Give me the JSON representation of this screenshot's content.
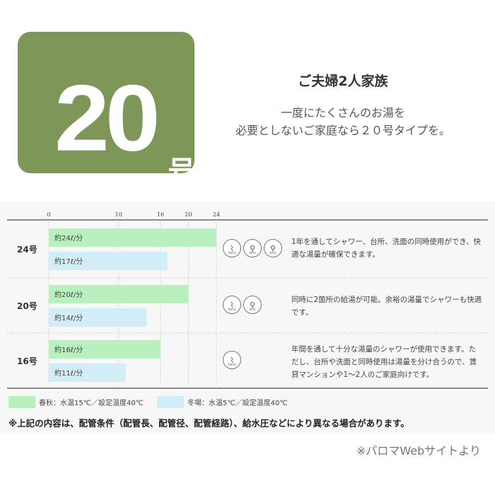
{
  "logo": {
    "number": "20",
    "suffix": "号"
  },
  "header": {
    "title": "ご夫婦2人家族",
    "subtitle_lines": [
      "一度にたくさんのお湯を",
      "必要としないご家庭なら２０号タイプを。"
    ]
  },
  "chart_data": {
    "type": "bar",
    "orientation": "horizontal",
    "categories": [
      "24号",
      "20号",
      "16号"
    ],
    "ticks": [
      0,
      10,
      16,
      20,
      24
    ],
    "xlim": [
      0,
      24
    ],
    "series": [
      {
        "name": "春秋：水温15℃／設定温度40℃",
        "color": "#b8f0c0",
        "values": [
          24,
          20,
          16
        ],
        "labels": [
          "約24ℓ/分",
          "約20ℓ/分",
          "約16ℓ/分"
        ]
      },
      {
        "name": "冬場：水温5℃／設定温度40℃",
        "color": "#d3edf8",
        "values": [
          17,
          14,
          11
        ],
        "labels": [
          "約17ℓ/分",
          "約14ℓ/分",
          "約11ℓ/分"
        ]
      }
    ]
  },
  "rows": [
    {
      "icons": [
        {
          "name": "shower",
          "label": "10ℓ/分"
        },
        {
          "name": "faucet",
          "label": "4ℓ/分"
        },
        {
          "name": "faucet",
          "label": "4ℓ/分"
        }
      ],
      "description": "1年を通してシャワー、台所、洗面の同時使用ができ、快適な湯量が確保できます。"
    },
    {
      "icons": [
        {
          "name": "shower",
          "label": "10ℓ/分"
        },
        {
          "name": "faucet",
          "label": "4ℓ/分"
        }
      ],
      "description": "同時に2箇所の給湯が可能。余裕の湯量でシャワーも快適です。"
    },
    {
      "icons": [
        {
          "name": "shower",
          "label": "10ℓ/分"
        }
      ],
      "description": "年間を通して十分な湯量のシャワーが使用できます。ただし、台所や洗面と同時使用は湯量を分け合うので、賃貸マンションや1〜2人のご家庭向けです。"
    }
  ],
  "note": "※上記の内容は、配管条件（配管長、配管径、配管経路）、給水圧などにより異なる場合があります。",
  "source": "※パロマWebサイトより"
}
